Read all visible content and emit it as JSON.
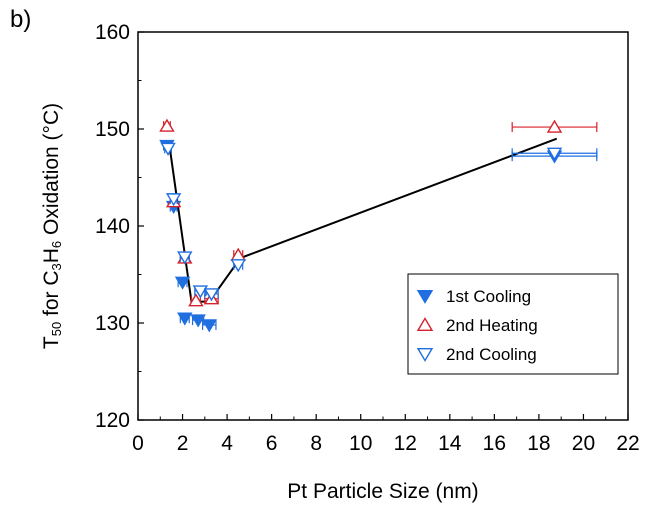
{
  "panel_label": "b)",
  "colors": {
    "blue": "#1f6fe0",
    "red": "#d6202a",
    "black": "#000000"
  },
  "chart_data": {
    "type": "scatter",
    "title": "",
    "xlabel": "Pt Particle Size (nm)",
    "ylabel": {
      "parts": [
        {
          "t": "T",
          "s": ""
        },
        {
          "t": "50",
          "s": "sub"
        },
        {
          "t": " for C",
          "s": ""
        },
        {
          "t": "3",
          "s": "sub"
        },
        {
          "t": "H",
          "s": ""
        },
        {
          "t": "6",
          "s": "sub"
        },
        {
          "t": " Oxidation (°C)",
          "s": ""
        }
      ]
    },
    "xlim": [
      0,
      22
    ],
    "ylim": [
      120,
      160
    ],
    "xticks": [
      0,
      2,
      4,
      6,
      8,
      10,
      12,
      14,
      16,
      18,
      20,
      22
    ],
    "yticks": [
      120,
      130,
      140,
      150,
      160
    ],
    "legend_position": "center-right",
    "series": [
      {
        "name": "1st  Cooling",
        "marker": "triangle-down-filled",
        "color": "#1f6fe0",
        "points": [
          {
            "x": 1.3,
            "y": 148.3,
            "xerr": 0.15
          },
          {
            "x": 1.6,
            "y": 142.0,
            "xerr": 0.15
          },
          {
            "x": 2.0,
            "y": 134.2,
            "xerr": 0.2
          },
          {
            "x": 2.1,
            "y": 130.5,
            "xerr": 0.2
          },
          {
            "x": 2.7,
            "y": 130.3,
            "xerr": 0.25
          },
          {
            "x": 3.2,
            "y": 129.8,
            "xerr": 0.3
          },
          {
            "x": 18.7,
            "y": 147.2,
            "xerr": 1.9
          }
        ]
      },
      {
        "name": "2nd Heating",
        "marker": "triangle-up-open",
        "color": "#d6202a",
        "points": [
          {
            "x": 1.3,
            "y": 150.3,
            "xerr": 0.15
          },
          {
            "x": 1.6,
            "y": 142.5,
            "xerr": 0.15
          },
          {
            "x": 2.1,
            "y": 136.7,
            "xerr": 0.2
          },
          {
            "x": 2.6,
            "y": 132.3,
            "xerr": 0.2
          },
          {
            "x": 3.3,
            "y": 132.5,
            "xerr": 0.3
          },
          {
            "x": 4.5,
            "y": 137.0,
            "xerr": 0.2
          },
          {
            "x": 18.7,
            "y": 150.2,
            "xerr": 1.9
          }
        ]
      },
      {
        "name": "2nd Cooling",
        "marker": "triangle-down-open",
        "color": "#1f6fe0",
        "points": [
          {
            "x": 1.35,
            "y": 148.0,
            "xerr": 0.15
          },
          {
            "x": 1.6,
            "y": 142.8,
            "xerr": 0.15
          },
          {
            "x": 2.1,
            "y": 136.8,
            "xerr": 0.2
          },
          {
            "x": 2.8,
            "y": 133.3,
            "xerr": 0.25
          },
          {
            "x": 3.3,
            "y": 133.0,
            "xerr": 0.3
          },
          {
            "x": 4.5,
            "y": 136.0,
            "xerr": 0.2
          },
          {
            "x": 18.7,
            "y": 147.5,
            "xerr": 1.9
          }
        ]
      }
    ],
    "trend_line": {
      "color": "#000000",
      "points": [
        {
          "x": 1.4,
          "y": 148.5
        },
        {
          "x": 2.4,
          "y": 132.2
        },
        {
          "x": 3.2,
          "y": 132.2
        },
        {
          "x": 4.6,
          "y": 136.7
        },
        {
          "x": 18.8,
          "y": 149.0
        }
      ]
    }
  }
}
